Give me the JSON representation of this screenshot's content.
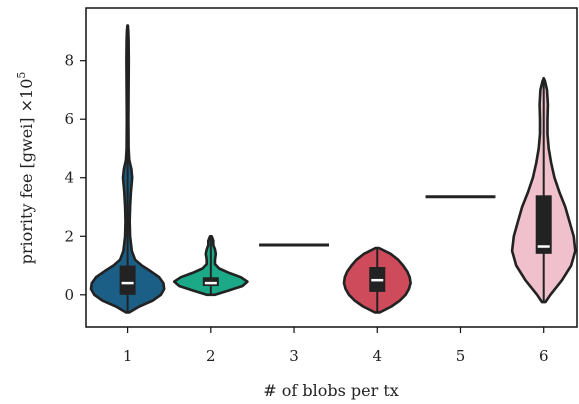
{
  "chart_data": {
    "type": "violin",
    "xlabel": "# of blobs per tx",
    "ylabel": "priority fee [gwei] ×10",
    "ylabel_exponent": "5",
    "categories": [
      "1",
      "2",
      "3",
      "4",
      "5",
      "6"
    ],
    "y_ticks": [
      "0",
      "2",
      "4",
      "6",
      "8"
    ],
    "ylim": [
      -1.1,
      9.8
    ],
    "xlim": [
      0.5,
      6.4
    ],
    "series": [
      {
        "category": "1",
        "color": "#1b5f87",
        "min": -0.6,
        "max": 9.2,
        "q1": 0.0,
        "median": 0.4,
        "q3": 1.0,
        "profile": [
          [
            -0.6,
            0.02
          ],
          [
            -0.4,
            0.14
          ],
          [
            -0.2,
            0.3
          ],
          [
            0.0,
            0.4
          ],
          [
            0.2,
            0.44
          ],
          [
            0.4,
            0.43
          ],
          [
            0.6,
            0.38
          ],
          [
            0.8,
            0.28
          ],
          [
            1.0,
            0.17
          ],
          [
            1.2,
            0.09
          ],
          [
            1.5,
            0.05
          ],
          [
            2.0,
            0.03
          ],
          [
            2.5,
            0.025
          ],
          [
            3.0,
            0.03
          ],
          [
            3.5,
            0.04
          ],
          [
            4.0,
            0.055
          ],
          [
            4.3,
            0.045
          ],
          [
            4.6,
            0.02
          ],
          [
            5.0,
            0.012
          ],
          [
            6.0,
            0.01
          ],
          [
            7.0,
            0.012
          ],
          [
            8.0,
            0.014
          ],
          [
            8.7,
            0.012
          ],
          [
            9.0,
            0.008
          ],
          [
            9.2,
            0.003
          ]
        ]
      },
      {
        "category": "2",
        "color": "#1ba988",
        "min": 0.0,
        "max": 2.0,
        "q1": 0.3,
        "median": 0.4,
        "q3": 0.6,
        "profile": [
          [
            0.0,
            0.05
          ],
          [
            0.15,
            0.22
          ],
          [
            0.3,
            0.38
          ],
          [
            0.45,
            0.44
          ],
          [
            0.6,
            0.36
          ],
          [
            0.75,
            0.22
          ],
          [
            0.9,
            0.1
          ],
          [
            1.05,
            0.05
          ],
          [
            1.2,
            0.05
          ],
          [
            1.4,
            0.06
          ],
          [
            1.55,
            0.05
          ],
          [
            1.7,
            0.03
          ],
          [
            1.85,
            0.03
          ],
          [
            2.0,
            0.01
          ]
        ]
      },
      {
        "category": "3",
        "color": "#222222",
        "line": 1.7,
        "halfwidth": 0.42
      },
      {
        "category": "4",
        "color": "#cd4b5b",
        "min": -0.6,
        "max": 1.6,
        "q1": 0.1,
        "median": 0.5,
        "q3": 0.95,
        "profile": [
          [
            -0.6,
            0.03
          ],
          [
            -0.4,
            0.17
          ],
          [
            -0.2,
            0.27
          ],
          [
            0.0,
            0.34
          ],
          [
            0.2,
            0.38
          ],
          [
            0.4,
            0.4
          ],
          [
            0.6,
            0.39
          ],
          [
            0.8,
            0.36
          ],
          [
            1.0,
            0.31
          ],
          [
            1.2,
            0.25
          ],
          [
            1.4,
            0.16
          ],
          [
            1.5,
            0.09
          ],
          [
            1.6,
            0.02
          ]
        ]
      },
      {
        "category": "5",
        "color": "#222222",
        "line": 3.35,
        "halfwidth": 0.42
      },
      {
        "category": "6",
        "color": "#f0c0cc",
        "min": -0.25,
        "max": 7.4,
        "q1": 1.4,
        "median": 1.65,
        "q3": 3.4,
        "profile": [
          [
            -0.25,
            0.02
          ],
          [
            0.0,
            0.08
          ],
          [
            0.5,
            0.22
          ],
          [
            1.0,
            0.33
          ],
          [
            1.5,
            0.38
          ],
          [
            2.0,
            0.36
          ],
          [
            2.5,
            0.31
          ],
          [
            3.0,
            0.26
          ],
          [
            3.5,
            0.19
          ],
          [
            4.0,
            0.13
          ],
          [
            4.5,
            0.09
          ],
          [
            5.0,
            0.06
          ],
          [
            5.5,
            0.045
          ],
          [
            6.0,
            0.045
          ],
          [
            6.5,
            0.05
          ],
          [
            7.0,
            0.04
          ],
          [
            7.3,
            0.015
          ],
          [
            7.4,
            0.0
          ]
        ]
      }
    ]
  }
}
